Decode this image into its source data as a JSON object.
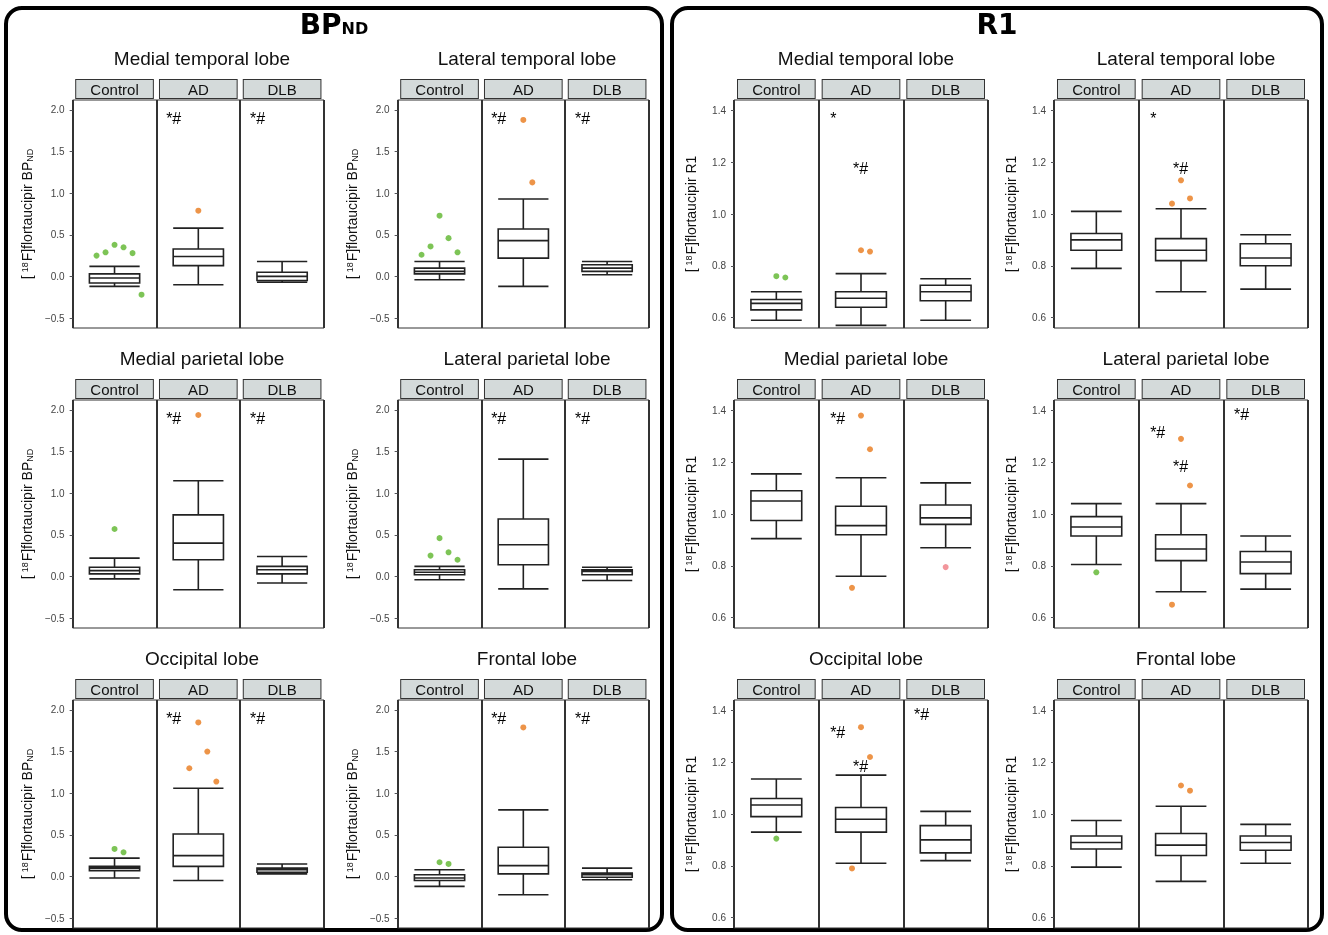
{
  "chart_data": [
    {
      "type": "box",
      "subtitle": "BP$_{ND}$",
      "title": "Medial temporal lobe",
      "ylabel": "[$^{18}$F]flortaucipir BP$_{ND}$",
      "categories": [
        "Control",
        "AD",
        "DLB"
      ],
      "ylim": [
        -0.62,
        2.12
      ],
      "yticks": [
        {
          "value": -0.5,
          "label": "−0.5"
        },
        {
          "value": 0,
          "label": "0.0"
        },
        0.5,
        {
          "value": 1,
          "label": "1.0"
        },
        1.5,
        {
          "value": 2,
          "label": "2.0"
        }
      ],
      "grid": false,
      "annotations": [
        "*#",
        "*#"
      ],
      "series": [
        {
          "type": "box",
          "color": "#222222",
          "boxes": [
            {
              "low": -0.12,
              "q1": -0.08,
              "median": -0.02,
              "q3": 0.03,
              "high": 0.12
            },
            {
              "low": -0.1,
              "q1": 0.13,
              "median": 0.24,
              "q3": 0.33,
              "high": 0.58
            },
            {
              "low": -0.07,
              "q1": -0.05,
              "median": 0,
              "q3": 0.05,
              "high": 0.18
            }
          ]
        },
        {
          "type": "scatter",
          "x": [
            "Control",
            "Control",
            "Control",
            "Control",
            "Control",
            "Control",
            "AD"
          ],
          "values": [
            0.38,
            0.35,
            0.29,
            0.28,
            0.25,
            -0.22,
            0.79
          ],
          "colors": [
            "#5db52c",
            "#5db52c",
            "#5db52c",
            "#5db52c",
            "#5db52c",
            "#5db52c",
            "#e8791a"
          ]
        }
      ]
    },
    {
      "type": "box",
      "title": "Lateral temporal lobe",
      "ylabel": "[$^{18}$F]flortaucipir BP$_{ND}$",
      "categories": [
        "Control",
        "AD",
        "DLB"
      ],
      "ylim": [
        -0.62,
        2.12
      ],
      "yticks": [
        {
          "value": -0.5,
          "label": "−0.5"
        },
        {
          "value": 0,
          "label": "0.0"
        },
        0.5,
        {
          "value": 1,
          "label": "1.0"
        },
        1.5,
        {
          "value": 2,
          "label": "2.0"
        }
      ],
      "grid": false,
      "annotations": [
        "*#",
        "*#"
      ],
      "series": [
        {
          "type": "box",
          "color": "#222222",
          "boxes": [
            {
              "low": -0.04,
              "q1": 0.03,
              "median": 0.06,
              "q3": 0.1,
              "high": 0.18
            },
            {
              "low": -0.12,
              "q1": 0.22,
              "median": 0.43,
              "q3": 0.57,
              "high": 0.93
            },
            {
              "low": 0.02,
              "q1": 0.06,
              "median": 0.1,
              "q3": 0.14,
              "high": 0.18
            }
          ]
        },
        {
          "type": "scatter",
          "x": [
            "Control",
            "Control",
            "Control",
            "Control",
            "Control",
            "AD",
            "AD"
          ],
          "values": [
            0.73,
            0.46,
            0.36,
            0.29,
            0.26,
            1.88,
            1.13
          ],
          "colors": [
            "#5db52c",
            "#5db52c",
            "#5db52c",
            "#5db52c",
            "#5db52c",
            "#e8791a",
            "#e8791a"
          ]
        }
      ]
    },
    {
      "type": "box",
      "title": "Medial parietal lobe",
      "ylabel": "[$^{18}$F]flortaucipir BP$_{ND}$",
      "categories": [
        "Control",
        "AD",
        "DLB"
      ],
      "ylim": [
        -0.62,
        2.12
      ],
      "yticks": [
        {
          "value": -0.5,
          "label": "−0.5"
        },
        {
          "value": 0,
          "label": "0.0"
        },
        0.5,
        {
          "value": 1,
          "label": "1.0"
        },
        1.5,
        {
          "value": 2,
          "label": "2.0"
        }
      ],
      "grid": false,
      "annotations": [
        "*#",
        "*#"
      ],
      "series": [
        {
          "type": "box",
          "color": "#222222",
          "boxes": [
            {
              "low": -0.03,
              "q1": 0.03,
              "median": 0.07,
              "q3": 0.11,
              "high": 0.22
            },
            {
              "low": -0.16,
              "q1": 0.2,
              "median": 0.4,
              "q3": 0.74,
              "high": 1.15
            },
            {
              "low": -0.08,
              "q1": 0.03,
              "median": 0.08,
              "q3": 0.12,
              "high": 0.24
            }
          ]
        },
        {
          "type": "scatter",
          "x": [
            "Control",
            "AD"
          ],
          "values": [
            0.57,
            1.94
          ],
          "colors": [
            "#5db52c",
            "#e8791a"
          ]
        }
      ]
    },
    {
      "type": "box",
      "title": "Lateral parietal lobe",
      "ylabel": "[$^{18}$F]flortaucipir BP$_{ND}$",
      "categories": [
        "Control",
        "AD",
        "DLB"
      ],
      "ylim": [
        -0.62,
        2.12
      ],
      "yticks": [
        {
          "value": -0.5,
          "label": "−0.5"
        },
        {
          "value": 0,
          "label": "0.0"
        },
        0.5,
        {
          "value": 1,
          "label": "1.0"
        },
        1.5,
        {
          "value": 2,
          "label": "2.0"
        }
      ],
      "grid": false,
      "annotations": [
        "*#",
        "*#"
      ],
      "series": [
        {
          "type": "box",
          "color": "#222222",
          "boxes": [
            {
              "low": -0.04,
              "q1": 0.02,
              "median": 0.05,
              "q3": 0.08,
              "high": 0.12
            },
            {
              "low": -0.15,
              "q1": 0.14,
              "median": 0.38,
              "q3": 0.69,
              "high": 1.41
            },
            {
              "low": -0.05,
              "q1": 0.02,
              "median": 0.06,
              "q3": 0.08,
              "high": 0.11
            }
          ]
        },
        {
          "type": "scatter",
          "x": [
            "Control",
            "Control",
            "Control",
            "Control"
          ],
          "values": [
            0.46,
            0.29,
            0.25,
            0.2
          ],
          "colors": [
            "#5db52c",
            "#5db52c",
            "#5db52c",
            "#5db52c"
          ]
        }
      ]
    },
    {
      "type": "box",
      "title": "Occipital lobe",
      "ylabel": "[$^{18}$F]flortaucipir BP$_{ND}$",
      "categories": [
        "Control",
        "AD",
        "DLB"
      ],
      "ylim": [
        -0.62,
        2.12
      ],
      "yticks": [
        {
          "value": -0.5,
          "label": "−0.5"
        },
        {
          "value": 0,
          "label": "0.0"
        },
        0.5,
        {
          "value": 1,
          "label": "1.0"
        },
        1.5,
        {
          "value": 2,
          "label": "2.0"
        }
      ],
      "grid": false,
      "annotations": [
        "*#",
        "*#"
      ],
      "series": [
        {
          "type": "box",
          "color": "#222222",
          "boxes": [
            {
              "low": -0.02,
              "q1": 0.07,
              "median": 0.1,
              "q3": 0.12,
              "high": 0.22
            },
            {
              "low": -0.05,
              "q1": 0.12,
              "median": 0.25,
              "q3": 0.51,
              "high": 1.06
            },
            {
              "low": 0.03,
              "q1": 0.05,
              "median": 0.08,
              "q3": 0.1,
              "high": 0.15
            }
          ]
        },
        {
          "type": "scatter",
          "x": [
            "Control",
            "Control",
            "AD",
            "AD",
            "AD",
            "AD"
          ],
          "values": [
            0.33,
            0.29,
            1.85,
            1.5,
            1.3,
            1.14
          ],
          "colors": [
            "#5db52c",
            "#5db52c",
            "#e8791a",
            "#e8791a",
            "#e8791a",
            "#e8791a"
          ]
        }
      ]
    },
    {
      "type": "box",
      "title": "Frontal lobe",
      "ylabel": "[$^{18}$F]flortaucipir BP$_{ND}$",
      "categories": [
        "Control",
        "AD",
        "DLB"
      ],
      "ylim": [
        -0.62,
        2.12
      ],
      "yticks": [
        {
          "value": -0.5,
          "label": "−0.5"
        },
        {
          "value": 0,
          "label": "0.0"
        },
        0.5,
        {
          "value": 1,
          "label": "1.0"
        },
        1.5,
        {
          "value": 2,
          "label": "2.0"
        }
      ],
      "grid": false,
      "annotations": [
        "*#",
        "*#"
      ],
      "series": [
        {
          "type": "box",
          "color": "#222222",
          "boxes": [
            {
              "low": -0.12,
              "q1": -0.05,
              "median": -0.02,
              "q3": 0.02,
              "high": 0.08
            },
            {
              "low": -0.22,
              "q1": 0.03,
              "median": 0.13,
              "q3": 0.35,
              "high": 0.8
            },
            {
              "low": -0.04,
              "q1": -0.01,
              "median": 0.02,
              "q3": 0.04,
              "high": 0.1
            }
          ]
        },
        {
          "type": "scatter",
          "x": [
            "Control",
            "Control",
            "AD"
          ],
          "values": [
            0.17,
            0.15,
            1.79
          ],
          "colors": [
            "#5db52c",
            "#5db52c",
            "#e8791a"
          ]
        }
      ]
    },
    {
      "type": "box",
      "subtitle": "R1",
      "title": "Medial temporal lobe",
      "ylabel": "[$^{18}$F]flortaucipir R1",
      "categories": [
        "Control",
        "AD",
        "DLB"
      ],
      "ylim": [
        0.56,
        1.44
      ],
      "yticks": [
        0.6,
        0.8,
        {
          "value": 1,
          "label": "1.0"
        },
        1.2,
        1.4
      ],
      "grid": false,
      "annotations": [
        "*",
        "*#"
      ],
      "series": [
        {
          "type": "box",
          "color": "#222222",
          "boxes": [
            {
              "low": 0.59,
              "q1": 0.63,
              "median": 0.655,
              "q3": 0.67,
              "high": 0.7
            },
            {
              "low": 0.57,
              "q1": 0.64,
              "median": 0.675,
              "q3": 0.7,
              "high": 0.77
            },
            {
              "low": 0.59,
              "q1": 0.665,
              "median": 0.7,
              "q3": 0.725,
              "high": 0.75
            }
          ]
        },
        {
          "type": "scatter",
          "x": [
            "Control",
            "Control",
            "AD",
            "AD"
          ],
          "values": [
            0.76,
            0.755,
            0.86,
            0.855
          ],
          "colors": [
            "#5db52c",
            "#5db52c",
            "#e8791a",
            "#e8791a"
          ]
        }
      ]
    },
    {
      "type": "box",
      "title": "Lateral temporal lobe",
      "ylabel": "[$^{18}$F]flortaucipir R1",
      "categories": [
        "Control",
        "AD",
        "DLB"
      ],
      "ylim": [
        0.56,
        1.44
      ],
      "yticks": [
        0.6,
        0.8,
        {
          "value": 1,
          "label": "1.0"
        },
        1.2,
        1.4
      ],
      "grid": false,
      "annotations": [
        "*",
        "*#"
      ],
      "series": [
        {
          "type": "box",
          "color": "#222222",
          "boxes": [
            {
              "low": 0.79,
              "q1": 0.86,
              "median": 0.9,
              "q3": 0.925,
              "high": 1.01
            },
            {
              "low": 0.7,
              "q1": 0.82,
              "median": 0.86,
              "q3": 0.905,
              "high": 1.02
            },
            {
              "low": 0.71,
              "q1": 0.8,
              "median": 0.83,
              "q3": 0.885,
              "high": 0.92
            }
          ]
        },
        {
          "type": "scatter",
          "x": [
            "AD",
            "AD",
            "AD"
          ],
          "values": [
            1.13,
            1.06,
            1.04
          ],
          "colors": [
            "#e8791a",
            "#e8791a",
            "#e8791a"
          ]
        }
      ]
    },
    {
      "type": "box",
      "title": "Medial parietal lobe",
      "ylabel": "[$^{18}$F]flortaucipir R1",
      "categories": [
        "Control",
        "AD",
        "DLB"
      ],
      "ylim": [
        0.56,
        1.44
      ],
      "yticks": [
        0.6,
        0.8,
        {
          "value": 1,
          "label": "1.0"
        },
        1.2,
        1.4
      ],
      "grid": false,
      "annotations": [
        "*#"
      ],
      "series": [
        {
          "type": "box",
          "color": "#222222",
          "boxes": [
            {
              "low": 0.905,
              "q1": 0.975,
              "median": 1.05,
              "q3": 1.09,
              "high": 1.155
            },
            {
              "low": 0.76,
              "q1": 0.92,
              "median": 0.955,
              "q3": 1.03,
              "high": 1.14
            },
            {
              "low": 0.87,
              "q1": 0.96,
              "median": 0.985,
              "q3": 1.035,
              "high": 1.12
            }
          ]
        },
        {
          "type": "scatter",
          "x": [
            "AD",
            "AD",
            "AD",
            "DLB"
          ],
          "values": [
            1.38,
            1.25,
            0.715,
            0.795
          ],
          "colors": [
            "#e8791a",
            "#e8791a",
            "#e8791a",
            "#ef7c83"
          ]
        }
      ]
    },
    {
      "type": "box",
      "title": "Lateral parietal lobe",
      "ylabel": "[$^{18}$F]flortaucipir R1",
      "categories": [
        "Control",
        "AD",
        "DLB"
      ],
      "ylim": [
        0.56,
        1.44
      ],
      "yticks": [
        0.6,
        0.8,
        {
          "value": 1,
          "label": "1.0"
        },
        1.2,
        1.4
      ],
      "grid": false,
      "annotations": [
        "*#",
        "*#",
        "*#"
      ],
      "series": [
        {
          "type": "box",
          "color": "#222222",
          "boxes": [
            {
              "low": 0.805,
              "q1": 0.915,
              "median": 0.95,
              "q3": 0.99,
              "high": 1.04
            },
            {
              "low": 0.7,
              "q1": 0.82,
              "median": 0.865,
              "q3": 0.92,
              "high": 1.04
            },
            {
              "low": 0.71,
              "q1": 0.77,
              "median": 0.815,
              "q3": 0.855,
              "high": 0.915
            }
          ]
        },
        {
          "type": "scatter",
          "x": [
            "Control",
            "AD",
            "AD",
            "AD"
          ],
          "values": [
            0.775,
            1.29,
            1.11,
            0.65
          ],
          "colors": [
            "#5db52c",
            "#e8791a",
            "#e8791a",
            "#e8791a"
          ]
        }
      ]
    },
    {
      "type": "box",
      "title": "Occipital lobe",
      "ylabel": "[$^{18}$F]flortaucipir R1",
      "categories": [
        "Control",
        "AD",
        "DLB"
      ],
      "ylim": [
        0.56,
        1.44
      ],
      "yticks": [
        0.6,
        0.8,
        {
          "value": 1,
          "label": "1.0"
        },
        1.2,
        1.4
      ],
      "grid": false,
      "annotations": [
        "*#",
        "*#",
        "*#"
      ],
      "series": [
        {
          "type": "box",
          "color": "#222222",
          "boxes": [
            {
              "low": 0.93,
              "q1": 0.99,
              "median": 1.035,
              "q3": 1.06,
              "high": 1.135
            },
            {
              "low": 0.81,
              "q1": 0.93,
              "median": 0.98,
              "q3": 1.025,
              "high": 1.15
            },
            {
              "low": 0.82,
              "q1": 0.85,
              "median": 0.9,
              "q3": 0.955,
              "high": 1.01
            }
          ]
        },
        {
          "type": "scatter",
          "x": [
            "Control",
            "AD",
            "AD",
            "AD"
          ],
          "values": [
            0.905,
            1.335,
            1.22,
            0.79
          ],
          "colors": [
            "#5db52c",
            "#e8791a",
            "#e8791a",
            "#e8791a"
          ]
        }
      ]
    },
    {
      "type": "box",
      "title": "Frontal lobe",
      "ylabel": "[$^{18}$F]flortaucipir R1",
      "categories": [
        "Control",
        "AD",
        "DLB"
      ],
      "ylim": [
        0.56,
        1.44
      ],
      "yticks": [
        0.6,
        0.8,
        {
          "value": 1,
          "label": "1.0"
        },
        1.2,
        1.4
      ],
      "grid": false,
      "series": [
        {
          "type": "box",
          "color": "#222222",
          "boxes": [
            {
              "low": 0.795,
              "q1": 0.865,
              "median": 0.89,
              "q3": 0.915,
              "high": 0.975
            },
            {
              "low": 0.74,
              "q1": 0.84,
              "median": 0.88,
              "q3": 0.925,
              "high": 1.03
            },
            {
              "low": 0.81,
              "q1": 0.86,
              "median": 0.89,
              "q3": 0.915,
              "high": 0.96
            }
          ]
        },
        {
          "type": "scatter",
          "x": [
            "AD",
            "AD"
          ],
          "values": [
            1.11,
            1.09
          ],
          "colors": [
            "#e8791a",
            "#e8791a"
          ]
        }
      ]
    }
  ]
}
